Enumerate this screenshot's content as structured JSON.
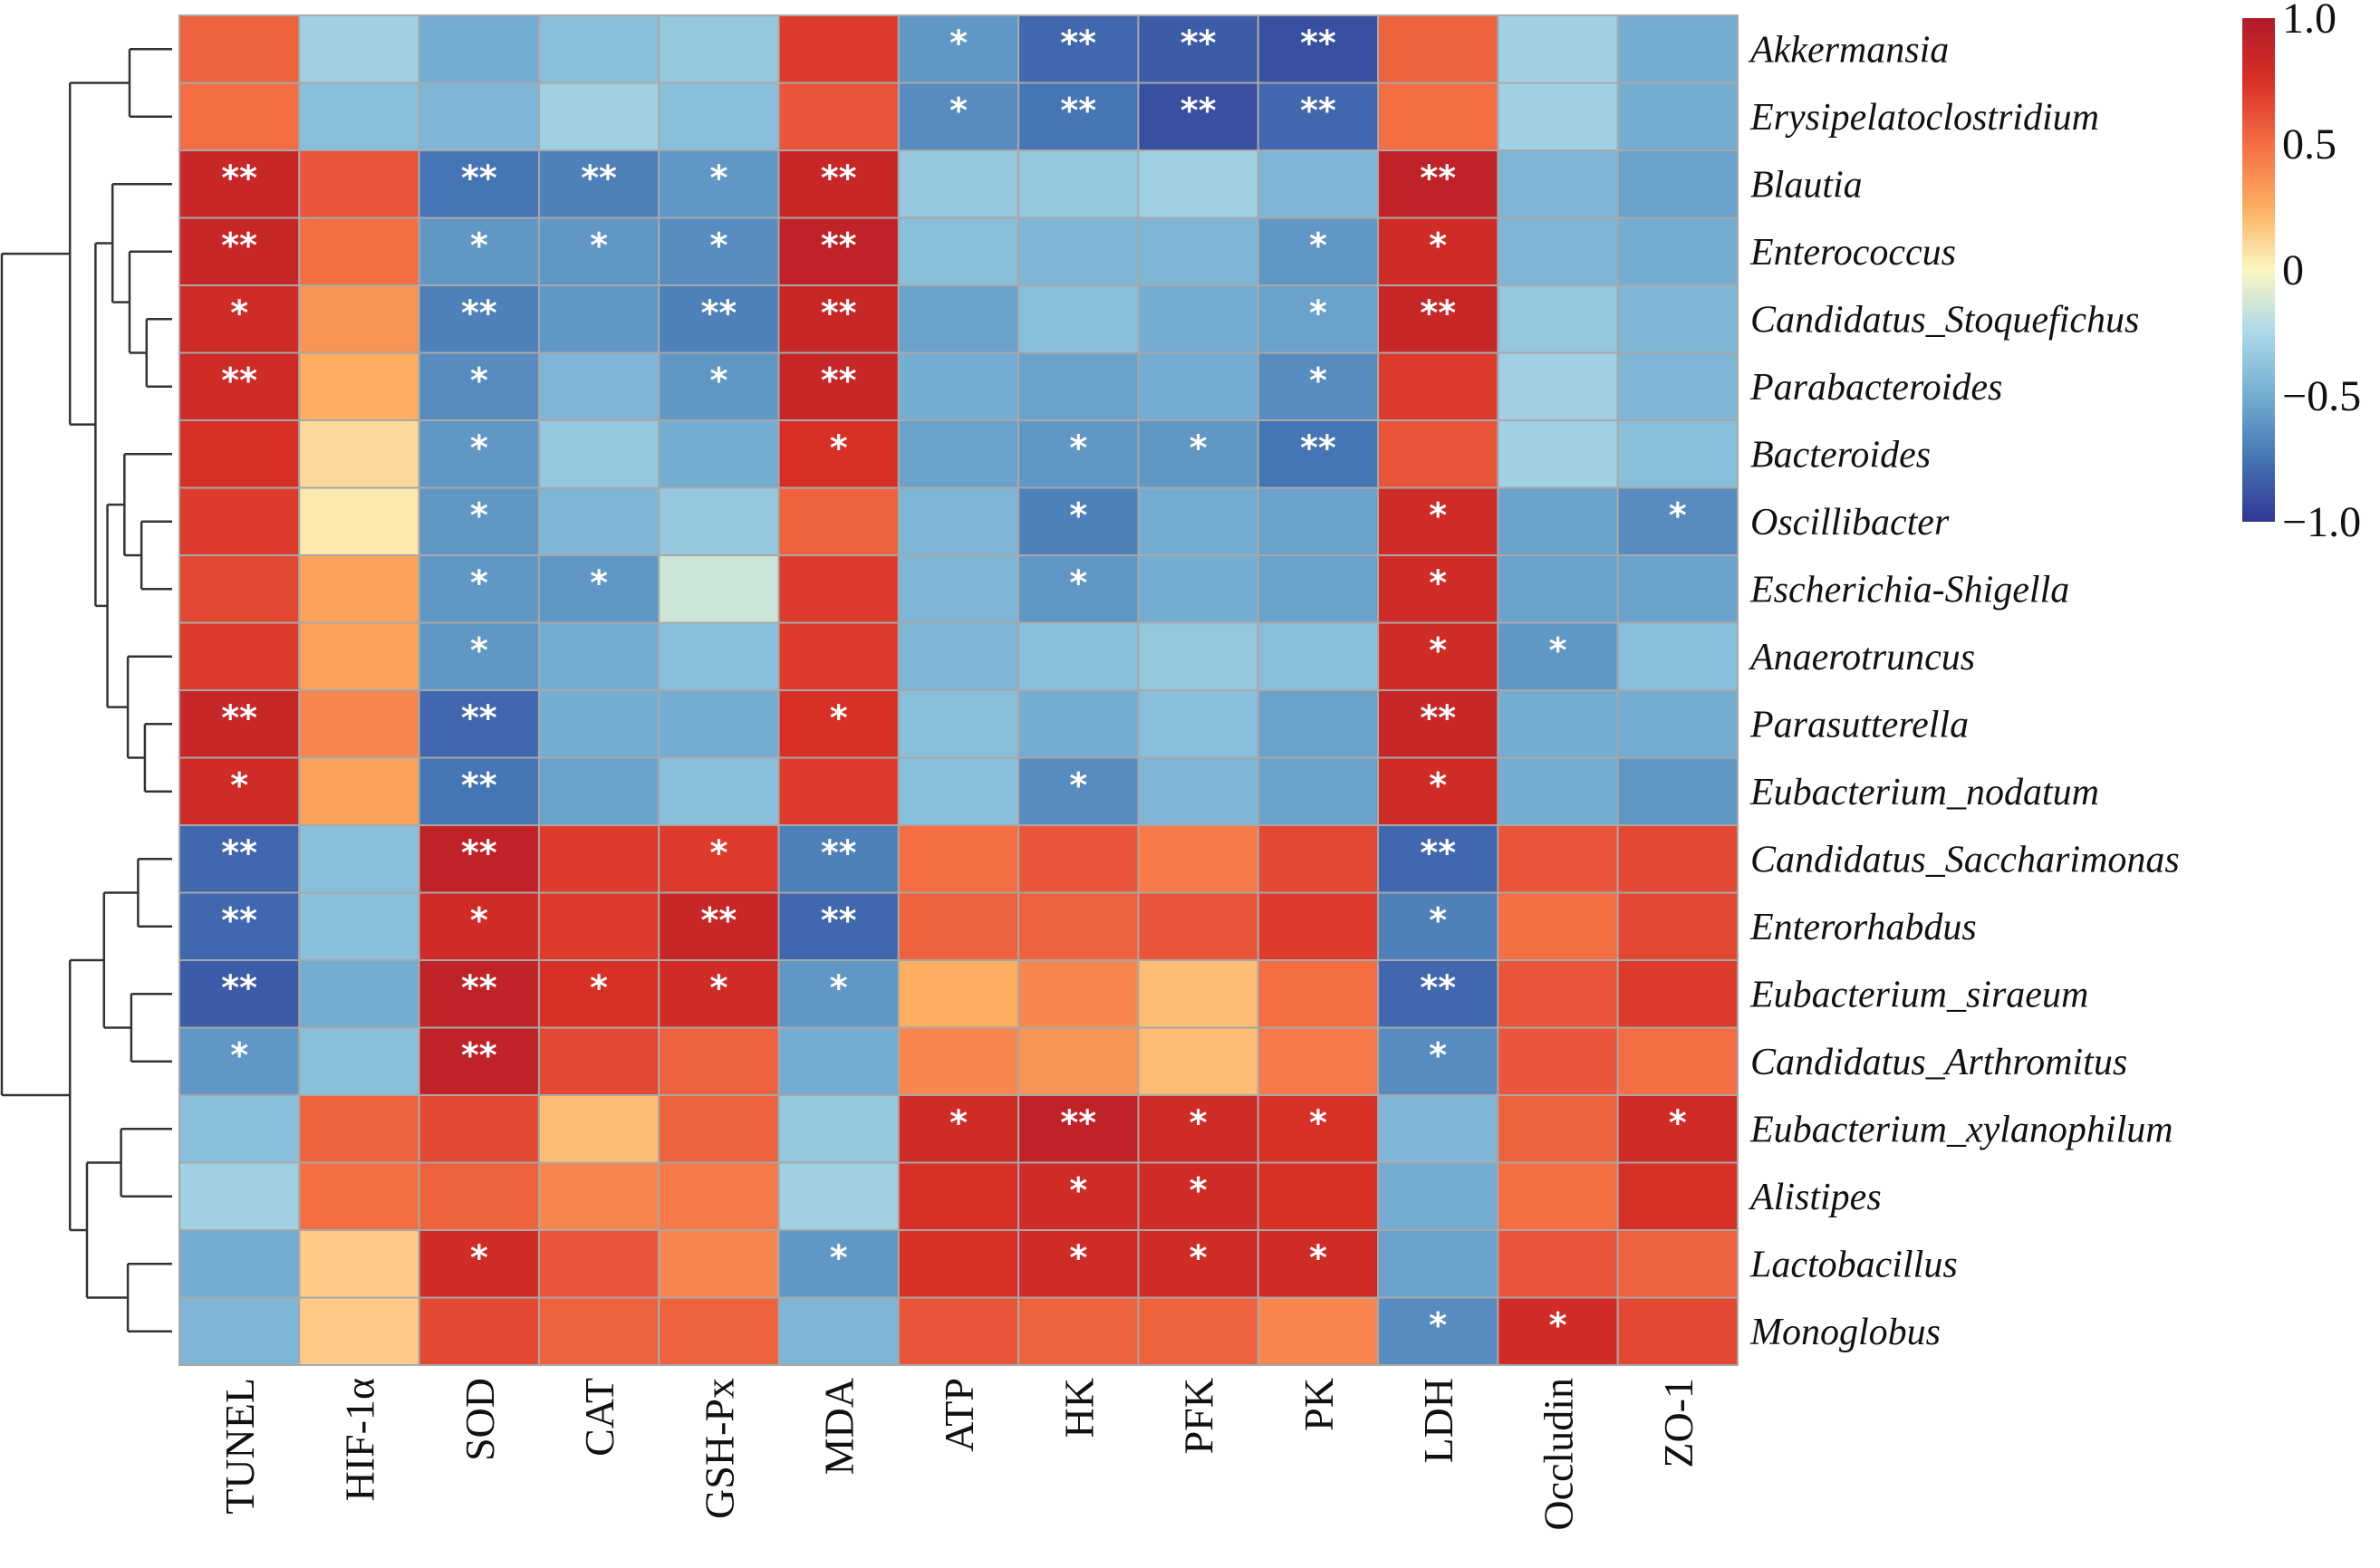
{
  "chart_data": {
    "type": "heatmap",
    "title": "",
    "columns": [
      "TUNEL",
      "HIF-1α",
      "SOD",
      "CAT",
      "GSH-Px",
      "MDA",
      "ATP",
      "HK",
      "PFK",
      "PK",
      "LDH",
      "Occludin",
      "ZO-1"
    ],
    "rows": [
      "Akkermansia",
      "Erysipelatoclostridium",
      "Blautia",
      "Enterococcus",
      "Candidatus_Stoquefichus",
      "Parabacteroides",
      "Bacteroides",
      "Oscillibacter",
      "Escherichia-Shigella",
      "Anaerotruncus",
      "Parasutterella",
      "Eubacterium_nodatum",
      "Candidatus_Saccharimonas",
      "Enterorhabdus",
      "Eubacterium_siraeum",
      "Candidatus_Arthromitus",
      "Eubacterium_xylanophilum",
      "Alistipes",
      "Lactobacillus",
      "Monoglobus"
    ],
    "values": [
      [
        0.55,
        -0.3,
        -0.5,
        -0.4,
        -0.35,
        0.7,
        -0.6,
        -0.8,
        -0.85,
        -0.9,
        0.55,
        -0.3,
        -0.5
      ],
      [
        0.5,
        -0.4,
        -0.45,
        -0.3,
        -0.4,
        0.6,
        -0.65,
        -0.75,
        -0.9,
        -0.8,
        0.5,
        -0.3,
        -0.5
      ],
      [
        0.85,
        0.6,
        -0.75,
        -0.7,
        -0.6,
        0.85,
        -0.35,
        -0.35,
        -0.3,
        -0.45,
        0.9,
        -0.45,
        -0.55
      ],
      [
        0.85,
        0.5,
        -0.6,
        -0.6,
        -0.65,
        0.9,
        -0.4,
        -0.45,
        -0.45,
        -0.6,
        0.8,
        -0.45,
        -0.5
      ],
      [
        0.8,
        0.35,
        -0.7,
        -0.6,
        -0.7,
        0.85,
        -0.55,
        -0.4,
        -0.5,
        -0.55,
        0.85,
        -0.35,
        -0.45
      ],
      [
        0.8,
        0.25,
        -0.65,
        -0.45,
        -0.6,
        0.85,
        -0.5,
        -0.55,
        -0.5,
        -0.65,
        0.7,
        -0.3,
        -0.45
      ],
      [
        0.75,
        0.1,
        -0.6,
        -0.35,
        -0.5,
        0.75,
        -0.55,
        -0.6,
        -0.6,
        -0.75,
        0.6,
        -0.3,
        -0.4
      ],
      [
        0.7,
        0.05,
        -0.6,
        -0.45,
        -0.35,
        0.55,
        -0.45,
        -0.7,
        -0.5,
        -0.55,
        0.8,
        -0.55,
        -0.65
      ],
      [
        0.65,
        0.3,
        -0.6,
        -0.6,
        -0.15,
        0.7,
        -0.45,
        -0.6,
        -0.5,
        -0.55,
        0.8,
        -0.55,
        -0.55
      ],
      [
        0.7,
        0.3,
        -0.6,
        -0.5,
        -0.4,
        0.7,
        -0.45,
        -0.4,
        -0.35,
        -0.4,
        0.8,
        -0.6,
        -0.4
      ],
      [
        0.85,
        0.4,
        -0.8,
        -0.5,
        -0.5,
        0.75,
        -0.4,
        -0.5,
        -0.4,
        -0.55,
        0.85,
        -0.5,
        -0.5
      ],
      [
        0.8,
        0.3,
        -0.75,
        -0.55,
        -0.4,
        0.7,
        -0.4,
        -0.65,
        -0.45,
        -0.55,
        0.8,
        -0.5,
        -0.6
      ],
      [
        -0.8,
        -0.4,
        0.9,
        0.7,
        0.7,
        -0.7,
        0.5,
        0.6,
        0.45,
        0.65,
        -0.8,
        0.6,
        0.65
      ],
      [
        -0.8,
        -0.4,
        0.8,
        0.7,
        0.85,
        -0.8,
        0.55,
        0.55,
        0.6,
        0.7,
        -0.7,
        0.5,
        0.65
      ],
      [
        -0.85,
        -0.5,
        0.9,
        0.75,
        0.8,
        -0.6,
        0.25,
        0.4,
        0.2,
        0.5,
        -0.8,
        0.6,
        0.7
      ],
      [
        -0.6,
        -0.4,
        0.9,
        0.65,
        0.55,
        -0.5,
        0.4,
        0.35,
        0.2,
        0.45,
        -0.65,
        0.6,
        0.5
      ],
      [
        -0.4,
        0.55,
        0.65,
        0.2,
        0.55,
        -0.35,
        0.8,
        0.9,
        0.8,
        0.75,
        -0.45,
        0.55,
        0.8
      ],
      [
        -0.3,
        0.5,
        0.55,
        0.4,
        0.45,
        -0.3,
        0.75,
        0.8,
        0.8,
        0.75,
        -0.5,
        0.5,
        0.75
      ],
      [
        -0.5,
        0.15,
        0.8,
        0.6,
        0.4,
        -0.6,
        0.75,
        0.8,
        0.8,
        0.8,
        -0.55,
        0.6,
        0.55
      ],
      [
        -0.45,
        0.15,
        0.65,
        0.55,
        0.55,
        -0.45,
        0.6,
        0.55,
        0.55,
        0.4,
        -0.65,
        0.8,
        0.65
      ]
    ],
    "significance": [
      [
        "",
        "",
        "",
        "",
        "",
        "",
        "*",
        "**",
        "**",
        "**",
        "",
        "",
        ""
      ],
      [
        "",
        "",
        "",
        "",
        "",
        "",
        "*",
        "**",
        "**",
        "**",
        "",
        "",
        ""
      ],
      [
        "**",
        "",
        "**",
        "**",
        "*",
        "**",
        "",
        "",
        "",
        "",
        "**",
        "",
        ""
      ],
      [
        "**",
        "",
        "*",
        "*",
        "*",
        "**",
        "",
        "",
        "",
        "*",
        "*",
        "",
        ""
      ],
      [
        "*",
        "",
        "**",
        "",
        "**",
        "**",
        "",
        "",
        "",
        "*",
        "**",
        "",
        ""
      ],
      [
        "**",
        "",
        "*",
        "",
        "*",
        "**",
        "",
        "",
        "",
        "*",
        "",
        "",
        ""
      ],
      [
        "",
        "",
        "*",
        "",
        "",
        "*",
        "",
        "*",
        "*",
        "**",
        "",
        "",
        ""
      ],
      [
        "",
        "",
        "*",
        "",
        "",
        "",
        "",
        "*",
        "",
        "",
        "*",
        "",
        "*"
      ],
      [
        "",
        "",
        "*",
        "*",
        "",
        "",
        "",
        "*",
        "",
        "",
        "*",
        "",
        ""
      ],
      [
        "",
        "",
        "*",
        "",
        "",
        "",
        "",
        "",
        "",
        "",
        "*",
        "*",
        ""
      ],
      [
        "**",
        "",
        "**",
        "",
        "",
        "*",
        "",
        "",
        "",
        "",
        "**",
        "",
        ""
      ],
      [
        "*",
        "",
        "**",
        "",
        "",
        "",
        "",
        "*",
        "",
        "",
        "*",
        "",
        ""
      ],
      [
        "**",
        "",
        "**",
        "",
        "*",
        "**",
        "",
        "",
        "",
        "",
        "**",
        "",
        ""
      ],
      [
        "**",
        "",
        "*",
        "",
        "**",
        "**",
        "",
        "",
        "",
        "",
        "*",
        "",
        ""
      ],
      [
        "**",
        "",
        "**",
        "*",
        "*",
        "*",
        "",
        "",
        "",
        "",
        "**",
        "",
        ""
      ],
      [
        "*",
        "",
        "**",
        "",
        "",
        "",
        "",
        "",
        "",
        "",
        "*",
        "",
        ""
      ],
      [
        "",
        "",
        "",
        "",
        "",
        "",
        "*",
        "**",
        "*",
        "*",
        "",
        "",
        "*"
      ],
      [
        "",
        "",
        "",
        "",
        "",
        "",
        "",
        "*",
        "*",
        "",
        "",
        "",
        ""
      ],
      [
        "",
        "",
        "*",
        "",
        "",
        "*",
        "",
        "*",
        "*",
        "*",
        "",
        "",
        ""
      ],
      [
        "",
        "",
        "",
        "",
        "",
        "",
        "",
        "",
        "",
        "",
        "*",
        "*",
        ""
      ]
    ],
    "colorbar": {
      "range": [
        -1.0,
        1.0
      ],
      "ticks": [
        1.0,
        0.5,
        0,
        -0.5,
        -1.0
      ],
      "tick_labels": [
        "1.0",
        "0.5",
        "0",
        "−0.5",
        "−1.0"
      ]
    },
    "colors": {
      "-1": "#313695",
      "-0.75": "#4575b4",
      "-0.5": "#74add1",
      "-0.25": "#abd9e9",
      "0": "#fcf6c0",
      "0.25": "#fdae61",
      "0.5": "#f46d43",
      "0.75": "#d73027",
      "1": "#b11a27"
    },
    "row_dendrogram": {
      "h": 10,
      "c": [
        {
          "h": 6,
          "c": [
            {
              "h": 2.5,
              "c": [
                0,
                1
              ]
            },
            {
              "h": 4.5,
              "c": [
                {
                  "h": 3.5,
                  "c": [
                    2,
                    {
                      "h": 2.5,
                      "c": [
                        3,
                        {
                          "h": 1.5,
                          "c": [
                            4,
                            5
                          ]
                        }
                      ]
                    }
                  ]
                },
                {
                  "h": 3.8,
                  "c": [
                    {
                      "h": 2.8,
                      "c": [
                        6,
                        {
                          "h": 1.8,
                          "c": [
                            7,
                            8
                          ]
                        }
                      ]
                    },
                    {
                      "h": 2.6,
                      "c": [
                        9,
                        {
                          "h": 1.6,
                          "c": [
                            10,
                            11
                          ]
                        }
                      ]
                    }
                  ]
                }
              ]
            }
          ]
        },
        {
          "h": 6,
          "c": [
            {
              "h": 4,
              "c": [
                {
                  "h": 2,
                  "c": [
                    12,
                    13
                  ]
                },
                {
                  "h": 2.4,
                  "c": [
                    14,
                    15
                  ]
                }
              ]
            },
            {
              "h": 5,
              "c": [
                {
                  "h": 3,
                  "c": [
                    16,
                    17
                  ]
                },
                {
                  "h": 2.6,
                  "c": [
                    18,
                    19
                  ]
                }
              ]
            }
          ]
        }
      ]
    }
  }
}
